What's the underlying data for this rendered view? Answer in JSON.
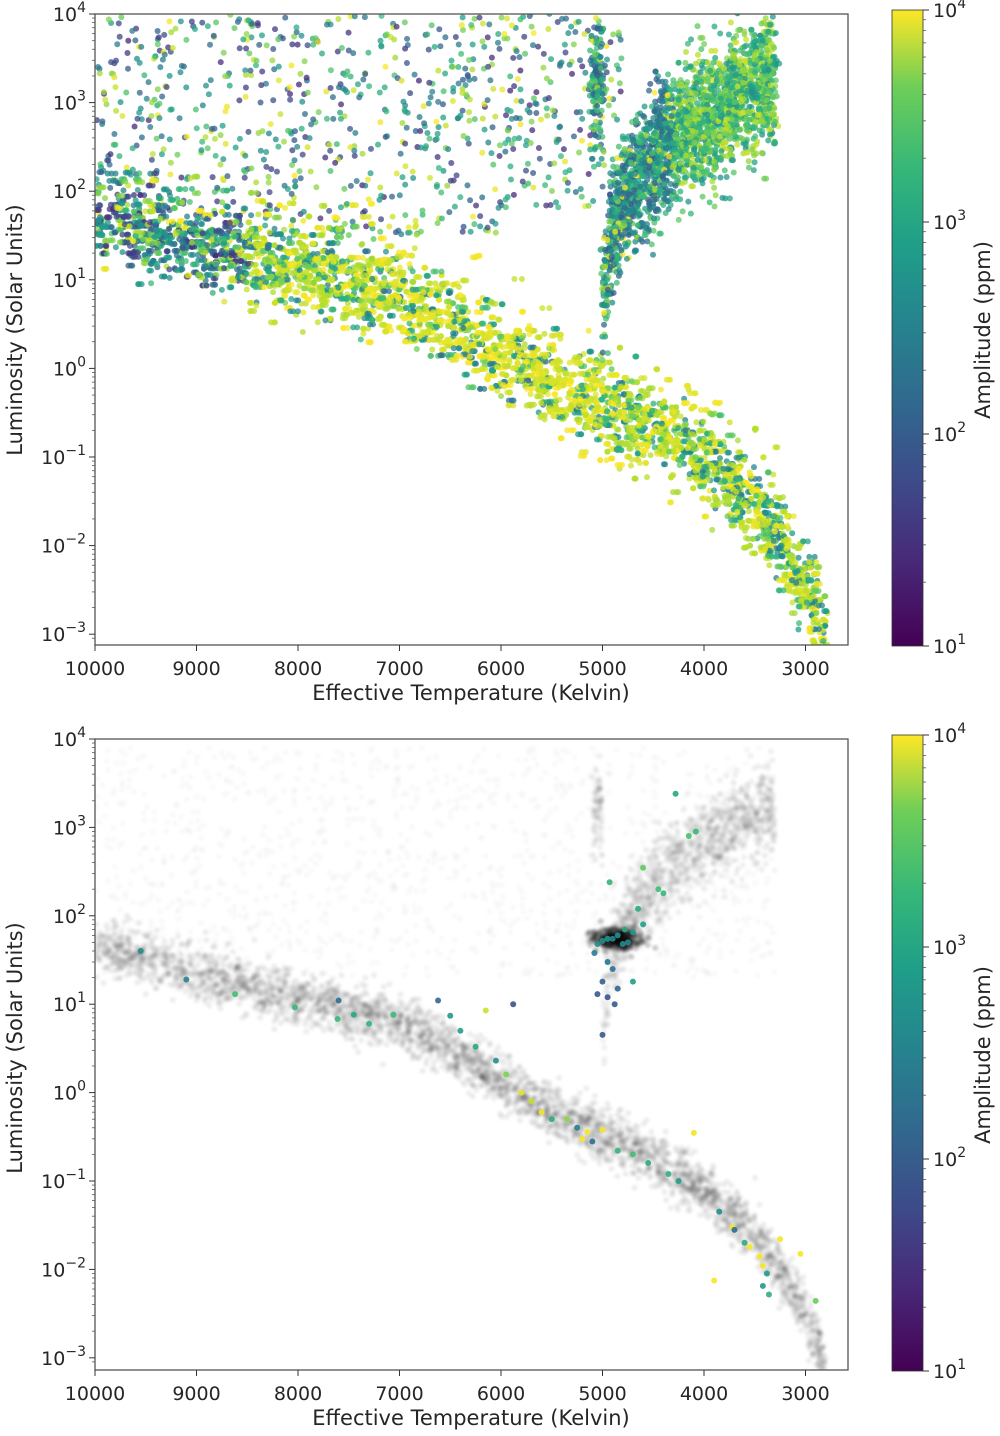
{
  "chart_data": [
    {
      "type": "scatter",
      "panel": "top",
      "title": "",
      "xlabel": "Effective Temperature (Kelvin)",
      "ylabel": "Luminosity (Solar Units)",
      "xscale": "linear",
      "xlim": [
        10000,
        2750
      ],
      "x_inverted": true,
      "xticks": [
        10000,
        9000,
        8000,
        7000,
        6000,
        5000,
        4000,
        3000
      ],
      "xtick_labels": [
        "10000",
        "9000",
        "8000",
        "7000",
        "6000",
        "5000",
        "4000",
        "3000"
      ],
      "yscale": "log",
      "ylim": [
        0.0008,
        10000
      ],
      "yticks": [
        0.001,
        0.01,
        0.1,
        1,
        10,
        100,
        1000,
        10000
      ],
      "ytick_labels": [
        {
          "base": "10",
          "exp": "−3"
        },
        {
          "base": "10",
          "exp": "−2"
        },
        {
          "base": "10",
          "exp": "−1"
        },
        {
          "base": "10",
          "exp": "0"
        },
        {
          "base": "10",
          "exp": "1"
        },
        {
          "base": "10",
          "exp": "2"
        },
        {
          "base": "10",
          "exp": "3"
        },
        {
          "base": "10",
          "exp": "4"
        }
      ],
      "colorbar": {
        "label": "Amplitude (ppm)",
        "scale": "log",
        "range": [
          10,
          10000
        ],
        "ticks": [
          10,
          100,
          1000,
          10000
        ],
        "tick_labels": [
          {
            "base": "10",
            "exp": "1"
          },
          {
            "base": "10",
            "exp": "2"
          },
          {
            "base": "10",
            "exp": "3"
          },
          {
            "base": "10",
            "exp": "4"
          }
        ],
        "colormap": "viridis"
      },
      "grid": false,
      "legend": null,
      "description": "Tens of thousands of stars colored by amplitude; main sequence from ~10000K/L~50 down to ~2800K/L~0.001 dominated by high amplitude (yellow), red giant branch from ~5000K/L~5 up to ~3300K/L~2000 in blue-green, sparse field above main sequence at hot temps.",
      "structures": [
        {
          "name": "main sequence",
          "points_T_L": [
            [
              10000,
              45
            ],
            [
              9000,
              22
            ],
            [
              8000,
              12
            ],
            [
              7000,
              6
            ],
            [
              6500,
              3
            ],
            [
              6000,
              1.3
            ],
            [
              5500,
              0.6
            ],
            [
              5000,
              0.35
            ],
            [
              4500,
              0.18
            ],
            [
              4000,
              0.08
            ],
            [
              3500,
              0.025
            ],
            [
              3200,
              0.008
            ],
            [
              3000,
              0.003
            ],
            [
              2800,
              0.0009
            ]
          ],
          "dominant_amplitude_ppm": 8000
        },
        {
          "name": "red giant branch",
          "points_T_L": [
            [
              5000,
              5
            ],
            [
              4900,
              40
            ],
            [
              4700,
              120
            ],
            [
              4300,
              400
            ],
            [
              3800,
              900
            ],
            [
              3400,
              1500
            ]
          ],
          "dominant_amplitude_ppm": 300
        },
        {
          "name": "hot luminous field",
          "T_range": [
            10000,
            5000
          ],
          "L_range": [
            30,
            9000
          ],
          "dominant_amplitude_ppm": "mixed"
        }
      ]
    },
    {
      "type": "scatter",
      "panel": "bottom",
      "title": "",
      "xlabel": "Effective Temperature (Kelvin)",
      "ylabel": "Luminosity (Solar Units)",
      "xscale": "linear",
      "xlim": [
        10000,
        2750
      ],
      "x_inverted": true,
      "xticks": [
        10000,
        9000,
        8000,
        7000,
        6000,
        5000,
        4000,
        3000
      ],
      "xtick_labels": [
        "10000",
        "9000",
        "8000",
        "7000",
        "6000",
        "5000",
        "4000",
        "3000"
      ],
      "yscale": "log",
      "ylim": [
        0.0008,
        10000
      ],
      "yticks": [
        0.001,
        0.01,
        0.1,
        1,
        10,
        100,
        1000,
        10000
      ],
      "ytick_labels": [
        {
          "base": "10",
          "exp": "−3"
        },
        {
          "base": "10",
          "exp": "−2"
        },
        {
          "base": "10",
          "exp": "−1"
        },
        {
          "base": "10",
          "exp": "0"
        },
        {
          "base": "10",
          "exp": "1"
        },
        {
          "base": "10",
          "exp": "2"
        },
        {
          "base": "10",
          "exp": "3"
        },
        {
          "base": "10",
          "exp": "4"
        }
      ],
      "colorbar": {
        "label": "Amplitude (ppm)",
        "scale": "log",
        "range": [
          10,
          10000
        ],
        "ticks": [
          10,
          100,
          1000,
          10000
        ],
        "tick_labels": [
          {
            "base": "10",
            "exp": "1"
          },
          {
            "base": "10",
            "exp": "2"
          },
          {
            "base": "10",
            "exp": "3"
          },
          {
            "base": "10",
            "exp": "4"
          }
        ],
        "colormap": "viridis"
      },
      "grid": false,
      "legend": null,
      "background": "full sample shown as translucent black density (HR diagram), with red clump concentration at ~4900K / L~55",
      "highlighted_points": [
        {
          "T": 9550,
          "L": 40,
          "amp": 300
        },
        {
          "T": 9100,
          "L": 19,
          "amp": 200
        },
        {
          "T": 8620,
          "L": 13,
          "amp": 1200
        },
        {
          "T": 8030,
          "L": 9.2,
          "amp": 1000
        },
        {
          "T": 7600,
          "L": 11,
          "amp": 120
        },
        {
          "T": 7610,
          "L": 6.8,
          "amp": 1000
        },
        {
          "T": 7450,
          "L": 7.6,
          "amp": 600
        },
        {
          "T": 7300,
          "L": 6.0,
          "amp": 900
        },
        {
          "T": 7060,
          "L": 7.6,
          "amp": 1100
        },
        {
          "T": 6620,
          "L": 11,
          "amp": 100
        },
        {
          "T": 6500,
          "L": 7.4,
          "amp": 400
        },
        {
          "T": 6400,
          "L": 5.0,
          "amp": 500
        },
        {
          "T": 6250,
          "L": 3.3,
          "amp": 600
        },
        {
          "T": 6150,
          "L": 8.5,
          "amp": 6000
        },
        {
          "T": 5880,
          "L": 10,
          "amp": 60
        },
        {
          "T": 6050,
          "L": 2.3,
          "amp": 300
        },
        {
          "T": 5950,
          "L": 1.6,
          "amp": 2500
        },
        {
          "T": 5800,
          "L": 1.0,
          "amp": 8000
        },
        {
          "T": 5700,
          "L": 0.8,
          "amp": 5000
        },
        {
          "T": 5600,
          "L": 0.6,
          "amp": 9000
        },
        {
          "T": 5500,
          "L": 0.5,
          "amp": 700
        },
        {
          "T": 5350,
          "L": 0.5,
          "amp": 3000
        },
        {
          "T": 5250,
          "L": 0.4,
          "amp": 200
        },
        {
          "T": 5200,
          "L": 0.3,
          "amp": 9500
        },
        {
          "T": 5100,
          "L": 0.28,
          "amp": 120
        },
        {
          "T": 5000,
          "L": 0.38,
          "amp": 9500
        },
        {
          "T": 5150,
          "L": 0.36,
          "amp": 9000
        },
        {
          "T": 4850,
          "L": 0.22,
          "amp": 1000
        },
        {
          "T": 4700,
          "L": 0.2,
          "amp": 1200
        },
        {
          "T": 4550,
          "L": 0.16,
          "amp": 700
        },
        {
          "T": 4350,
          "L": 0.12,
          "amp": 800
        },
        {
          "T": 4250,
          "L": 0.1,
          "amp": 500
        },
        {
          "T": 4100,
          "L": 0.35,
          "amp": 9000
        },
        {
          "T": 3850,
          "L": 0.045,
          "amp": 300
        },
        {
          "T": 3720,
          "L": 0.03,
          "amp": 9000
        },
        {
          "T": 3700,
          "L": 0.028,
          "amp": 120
        },
        {
          "T": 3600,
          "L": 0.02,
          "amp": 700
        },
        {
          "T": 3550,
          "L": 0.018,
          "amp": 9000
        },
        {
          "T": 3450,
          "L": 0.014,
          "amp": 9500
        },
        {
          "T": 3420,
          "L": 0.011,
          "amp": 9000
        },
        {
          "T": 3380,
          "L": 0.009,
          "amp": 400
        },
        {
          "T": 3250,
          "L": 0.022,
          "amp": 9500
        },
        {
          "T": 3900,
          "L": 0.0075,
          "amp": 9500
        },
        {
          "T": 3420,
          "L": 0.0065,
          "amp": 400
        },
        {
          "T": 3360,
          "L": 0.0052,
          "amp": 800
        },
        {
          "T": 2900,
          "L": 0.0044,
          "amp": 2000
        },
        {
          "T": 3050,
          "L": 0.015,
          "amp": 9500
        },
        {
          "T": 4280,
          "L": 2400,
          "amp": 600
        },
        {
          "T": 4080,
          "L": 900,
          "amp": 1000
        },
        {
          "T": 4150,
          "L": 800,
          "amp": 1300
        },
        {
          "T": 4600,
          "L": 350,
          "amp": 1800
        },
        {
          "T": 4930,
          "L": 240,
          "amp": 900
        },
        {
          "T": 4450,
          "L": 200,
          "amp": 1100
        },
        {
          "T": 4400,
          "L": 180,
          "amp": 1000
        },
        {
          "T": 4650,
          "L": 120,
          "amp": 700
        },
        {
          "T": 4600,
          "L": 80,
          "amp": 500
        },
        {
          "T": 4700,
          "L": 65,
          "amp": 400
        },
        {
          "T": 4850,
          "L": 60,
          "amp": 300
        },
        {
          "T": 4900,
          "L": 55,
          "amp": 250
        },
        {
          "T": 4950,
          "L": 55,
          "amp": 350
        },
        {
          "T": 5000,
          "L": 52,
          "amp": 300
        },
        {
          "T": 4800,
          "L": 48,
          "amp": 300
        },
        {
          "T": 4750,
          "L": 50,
          "amp": 250
        },
        {
          "T": 5050,
          "L": 48,
          "amp": 300
        },
        {
          "T": 4780,
          "L": 70,
          "amp": 600
        },
        {
          "T": 5080,
          "L": 38,
          "amp": 200
        },
        {
          "T": 4950,
          "L": 30,
          "amp": 150
        },
        {
          "T": 4900,
          "L": 25,
          "amp": 120
        },
        {
          "T": 5000,
          "L": 18,
          "amp": 80
        },
        {
          "T": 4850,
          "L": 15,
          "amp": 100
        },
        {
          "T": 4950,
          "L": 12,
          "amp": 60
        },
        {
          "T": 5050,
          "L": 13,
          "amp": 70
        },
        {
          "T": 4880,
          "L": 10,
          "amp": 70
        },
        {
          "T": 4700,
          "L": 18,
          "amp": 500
        },
        {
          "T": 5000,
          "L": 4.5,
          "amp": 70
        }
      ]
    }
  ],
  "figure": {
    "top": {
      "ylabel": "Luminosity (Solar Units)",
      "xlabel": "Effective Temperature (Kelvin)",
      "colorbar_label": "Amplitude (ppm)"
    },
    "bottom": {
      "ylabel": "Luminosity (Solar Units)",
      "xlabel": "Effective Temperature (Kelvin)",
      "colorbar_label": "Amplitude (ppm)"
    }
  }
}
